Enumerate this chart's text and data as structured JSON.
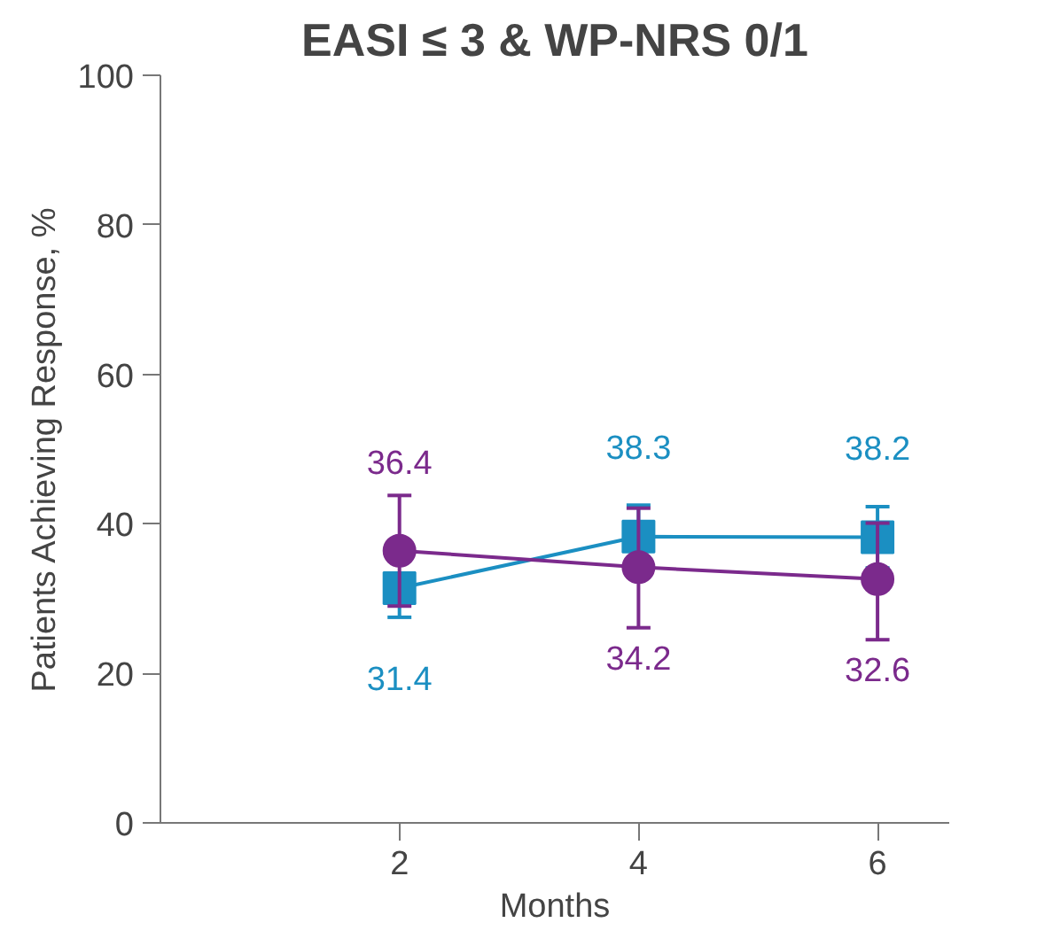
{
  "chart_data": {
    "type": "line",
    "title": "EASI ≤ 3 & WP-NRS 0/1",
    "xlabel": "Months",
    "ylabel": "Patients Achieving Response, %",
    "x": [
      2,
      4,
      6
    ],
    "xlim": [
      0,
      6.6
    ],
    "xticks": [
      2,
      4,
      6
    ],
    "ylim": [
      0,
      100
    ],
    "yticks": [
      0,
      20,
      40,
      60,
      80,
      100
    ],
    "data_labels": true,
    "grid": false,
    "line_style": "solid",
    "series": [
      {
        "color": "#1b8fc2",
        "marker": "square",
        "values": [
          31.4,
          38.3,
          38.2
        ],
        "errors": [
          [
            27.5,
            31.4
          ],
          [
            38.3,
            42.5
          ],
          [
            34.1,
            42.3
          ]
        ]
      },
      {
        "color": "#7b2a8c",
        "marker": "circle",
        "values": [
          36.4,
          34.2,
          32.6
        ],
        "errors": [
          [
            29.0,
            43.8
          ],
          [
            26.1,
            42.1
          ],
          [
            24.5,
            40.1
          ]
        ]
      }
    ]
  }
}
